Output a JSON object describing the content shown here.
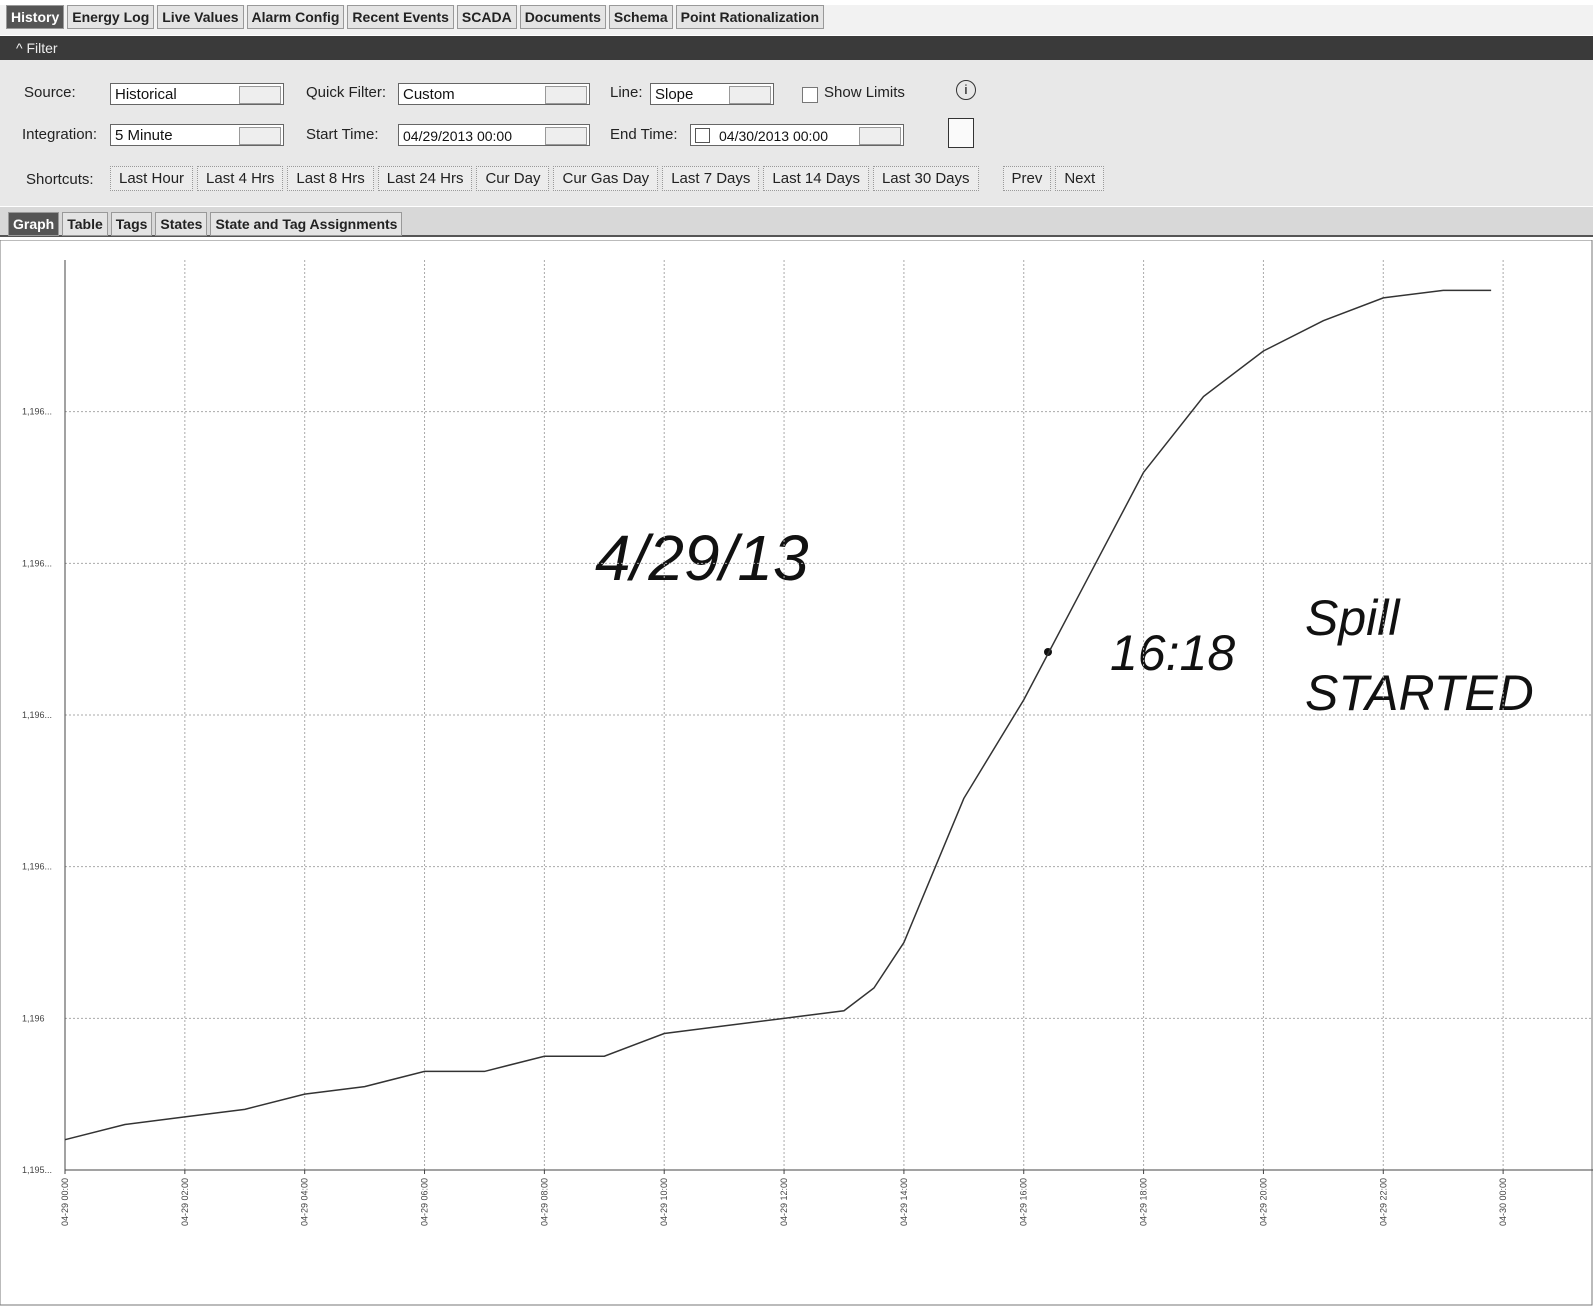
{
  "tabs": [
    "History",
    "Energy Log",
    "Live Values",
    "Alarm Config",
    "Recent Events",
    "SCADA",
    "Documents",
    "Schema",
    "Point Rationalization"
  ],
  "filter": {
    "title": "Filter",
    "source_label": "Source:",
    "source": "Historical",
    "quick_filter_label": "Quick Filter:",
    "quick_filter": "Custom",
    "line_label": "Line:",
    "line": "Slope",
    "show_limits": "Show Limits",
    "integration_label": "Integration:",
    "integration": "5 Minute",
    "start_time_label": "Start Time:",
    "start_time": "04/29/2013 00:00",
    "end_time_label": "End Time:",
    "end_time": "04/30/2013 00:00",
    "shortcuts_label": "Shortcuts:",
    "shortcuts": [
      "Last Hour",
      "Last 4 Hrs",
      "Last 8 Hrs",
      "Last 24 Hrs",
      "Cur Day",
      "Cur Gas Day",
      "Last 7 Days",
      "Last 14 Days",
      "Last 30 Days"
    ],
    "prev": "Prev",
    "next": "Next"
  },
  "subtabs": [
    "Graph",
    "Table",
    "Tags",
    "States",
    "State and Tag Assignments"
  ],
  "chart_data": {
    "type": "line",
    "annotations": [
      "4/29/13",
      "16:18",
      "Spill",
      "STARTED"
    ],
    "x": [
      0,
      1,
      2,
      3,
      4,
      5,
      6,
      7,
      8,
      9,
      10,
      11,
      12,
      13,
      13.5,
      14,
      15,
      16,
      17,
      18,
      19,
      20,
      21,
      22,
      23,
      23.8
    ],
    "series": [
      {
        "color": "#333333",
        "values": [
          1195.84,
          1195.86,
          1195.87,
          1195.88,
          1195.9,
          1195.91,
          1195.93,
          1195.93,
          1195.95,
          1195.95,
          1195.98,
          1195.99,
          1196.0,
          1196.01,
          1196.04,
          1196.1,
          1196.29,
          1196.42,
          1196.57,
          1196.72,
          1196.82,
          1196.88,
          1196.92,
          1196.95,
          1196.96,
          1196.96
        ]
      }
    ],
    "xlim": [
      0,
      25.5
    ],
    "xticks": [
      {
        "value": 0,
        "label": "04-29 00:00"
      },
      {
        "value": 2,
        "label": "04-29 02:00"
      },
      {
        "value": 4,
        "label": "04-29 04:00"
      },
      {
        "value": 6,
        "label": "04-29 06:00"
      },
      {
        "value": 8,
        "label": "04-29 08:00"
      },
      {
        "value": 10,
        "label": "04-29 10:00"
      },
      {
        "value": 12,
        "label": "04-29 12:00"
      },
      {
        "value": 14,
        "label": "04-29 14:00"
      },
      {
        "value": 16,
        "label": "04-29 16:00"
      },
      {
        "value": 18,
        "label": "04-29 18:00"
      },
      {
        "value": 20,
        "label": "04-29 20:00"
      },
      {
        "value": 22,
        "label": "04-29 22:00"
      },
      {
        "value": 24,
        "label": "04-30 00:00"
      }
    ],
    "ylim": [
      1195.8,
      1197.0
    ],
    "yticks": [
      {
        "value": 1195.8,
        "label": "1,195..."
      },
      {
        "value": 1196.0,
        "label": "1,196"
      },
      {
        "value": 1196.2,
        "label": "1,196..."
      },
      {
        "value": 1196.4,
        "label": "1,196..."
      },
      {
        "value": 1196.6,
        "label": "1,196..."
      },
      {
        "value": 1196.8,
        "label": "1,196..."
      }
    ],
    "grid": true
  }
}
